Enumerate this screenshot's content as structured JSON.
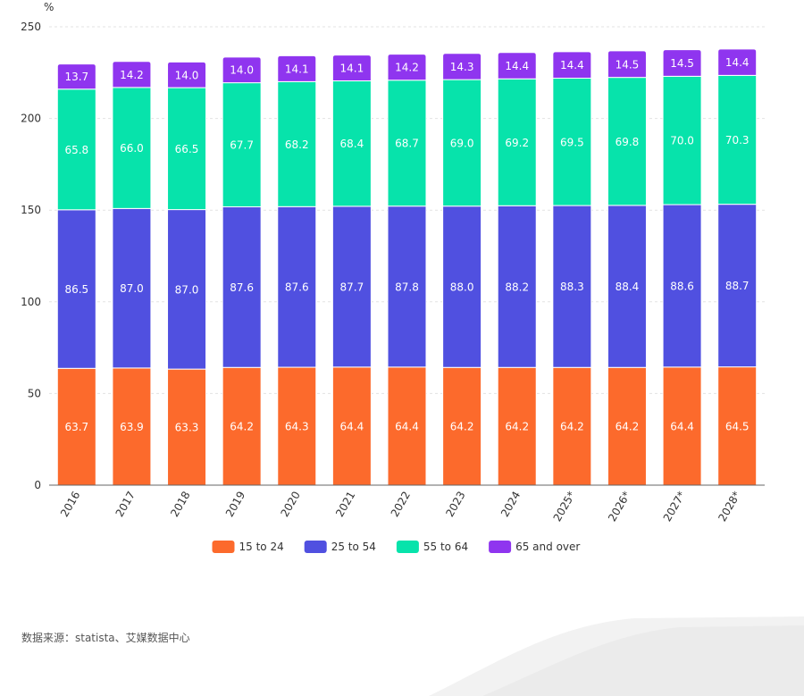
{
  "chart_data": {
    "type": "bar",
    "stacked": true,
    "unit_label": "%",
    "categories": [
      "2016",
      "2017",
      "2018",
      "2019",
      "2020",
      "2021",
      "2022",
      "2023",
      "2024",
      "2025*",
      "2026*",
      "2027*",
      "2028*"
    ],
    "series": [
      {
        "name": "15 to 24",
        "color": "#fc6a2c",
        "values": [
          63.7,
          63.9,
          63.3,
          64.2,
          64.3,
          64.4,
          64.4,
          64.2,
          64.2,
          64.2,
          64.2,
          64.4,
          64.5
        ]
      },
      {
        "name": "25 to 54",
        "color": "#5050e0",
        "values": [
          86.5,
          87.0,
          87.0,
          87.6,
          87.6,
          87.7,
          87.8,
          88.0,
          88.2,
          88.3,
          88.4,
          88.6,
          88.7
        ]
      },
      {
        "name": "55 to 64",
        "color": "#07e3ab",
        "values": [
          65.8,
          66.0,
          66.5,
          67.7,
          68.2,
          68.4,
          68.7,
          69.0,
          69.2,
          69.5,
          69.8,
          70.0,
          70.3
        ]
      },
      {
        "name": "65 and over",
        "color": "#8f35ef",
        "values": [
          13.7,
          14.2,
          14.0,
          14.0,
          14.1,
          14.1,
          14.2,
          14.3,
          14.4,
          14.4,
          14.5,
          14.5,
          14.4
        ]
      }
    ],
    "ylim": [
      0,
      250
    ],
    "yticks": [
      0,
      50,
      100,
      150,
      200,
      250
    ],
    "grid": true,
    "legend_position": "bottom-center"
  },
  "source_text": "数据来源：statista、艾媒数据中心"
}
